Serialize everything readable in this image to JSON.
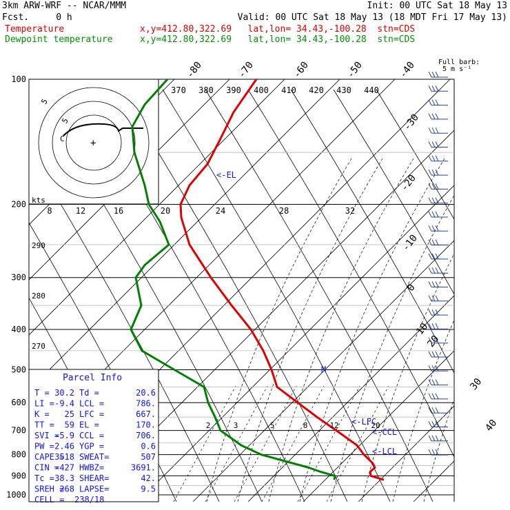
{
  "header": {
    "title": "3km ARW-WRF -- NCAR/MMM",
    "fcst": "Fcst.     0 h",
    "init": "Init: 00 UTC Sat 18 May 13",
    "valid": "Valid: 00 UTC Sat 18 May 13 (18 MDT Fri 17 May 13)",
    "temp_label": "Temperature",
    "temp_loc": "x,y=412.80,322.69   lat,lon= 34.43,-100.28  stn=CDS",
    "dew_label": "Dewpoint temperature",
    "dew_loc": "x,y=412.80,322.69   lat,lon= 34.43,-100.28  stn=CDS",
    "barb_key": "Full barb:",
    "barb_key_value": "5 m s⁻¹"
  },
  "chart_data": {
    "type": "line",
    "series": [
      {
        "name": "Temperature",
        "color": "#e00000",
        "pressure": [
          920,
          900,
          880,
          860,
          840,
          800,
          760,
          700,
          650,
          600,
          550,
          500,
          450,
          400,
          350,
          300,
          250,
          215,
          200,
          180,
          160,
          140,
          120,
          100
        ],
        "x": [
          557,
          538,
          537,
          544,
          541,
          528,
          518,
          488,
          460,
          432,
          402,
          394,
          382,
          364,
          336,
          306,
          275,
          263,
          262,
          275,
          301,
          319,
          339,
          372
        ]
      },
      {
        "name": "Dewpoint temperature",
        "color": "#008000",
        "pressure": [
          920,
          900,
          880,
          860,
          800,
          760,
          700,
          650,
          600,
          550,
          500,
          450,
          400,
          350,
          300,
          280,
          250,
          220,
          200,
          180,
          150,
          130,
          115,
          100
        ],
        "x": [
          485,
          486,
          465,
          448,
          379,
          350,
          320,
          312,
          302,
          296,
          253,
          206,
          190,
          205,
          197,
          210,
          245,
          232,
          216,
          210,
          195,
          192,
          210,
          243
        ]
      }
    ],
    "pressure_levels": [
      100,
      200,
      300,
      400,
      500,
      600,
      700,
      800,
      900,
      1000
    ],
    "isotherm_labels": [
      "-80",
      "-70",
      "-60",
      "-50",
      "-40",
      "-30",
      "-20",
      "-10",
      "0",
      "10",
      "20",
      "30",
      "40"
    ],
    "theta_e_labels": [
      "370",
      "380",
      "390",
      "400",
      "410",
      "420",
      "430",
      "440"
    ],
    "hodograph_speed_labels": [
      "8",
      "12",
      "16",
      "20",
      "24",
      "28",
      "32"
    ],
    "hodograph_units": "kts",
    "dry_adiabat_labels": [
      "290",
      "280",
      "270"
    ],
    "mixing_ratio_labels": [
      "2",
      "3",
      "5",
      "8",
      "12",
      "20"
    ],
    "hodo_ring_labels": [
      "5",
      "5",
      "5"
    ],
    "level_markers": [
      {
        "label": "<-EL",
        "pressure": 170,
        "color": "#1010ff"
      },
      {
        "label": "<-LFC",
        "pressure": 667,
        "color": "#1010ff"
      },
      {
        "label": "<-CCL",
        "pressure": 706,
        "color": "#1010ff"
      },
      {
        "label": "<-LCL",
        "pressure": 786,
        "color": "#1010ff"
      }
    ],
    "freezing_marker": "M"
  },
  "parcel": {
    "title": "Parcel Info",
    "rows": [
      [
        "T  =",
        "30.2",
        "Td =",
        "20.6"
      ],
      [
        "LI =",
        "-9.4",
        "LCL =",
        "786."
      ],
      [
        "K  =",
        "25",
        "LFC =",
        "667."
      ],
      [
        "TT =",
        "59",
        "EL =",
        "170."
      ],
      [
        "SVI =",
        "-5.9",
        "CCL =",
        "706."
      ],
      [
        "PW =",
        "2.46",
        "YGP =",
        "0.6"
      ],
      [
        "CAPE =",
        "3518",
        "SWEAT=",
        "507"
      ],
      [
        "CIN =",
        "-427",
        "HWBZ=",
        "3691."
      ],
      [
        "Tc =",
        "38.3",
        "SHEAR=",
        "42."
      ],
      [
        "SREH =",
        "268",
        "LAPSE=",
        "9.5"
      ],
      [
        "CELL =",
        "238/18",
        "",
        ""
      ]
    ]
  }
}
